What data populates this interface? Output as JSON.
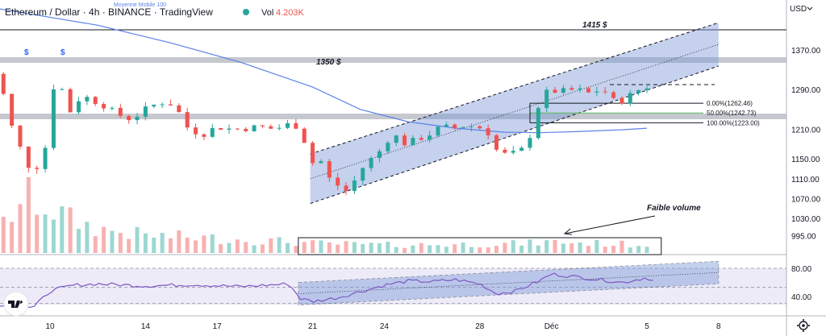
{
  "chart_data": {
    "type": "candlestick",
    "header": {
      "title": "Ethereum / Dollar · 4h · BINANCE · TradingView",
      "vol_label": "Vol",
      "vol_value": "4.203K",
      "ma_label": "Moyenne Mobile 100",
      "currency": "USD"
    },
    "y_ticks": [
      1370,
      1290,
      1210,
      1150,
      1110,
      1070,
      1030,
      995
    ],
    "y_tick_labels": [
      "1370.00",
      "1290.00",
      "1210.00",
      "1150.00",
      "1110.00",
      "1070.00",
      "1030.00",
      "995.00"
    ],
    "rsi_ticks": [
      80,
      40
    ],
    "rsi_tick_labels": [
      "80.00",
      "40.00"
    ],
    "x_tick_labels": [
      "10",
      "14",
      "17",
      "21",
      "24",
      "28",
      "Déc",
      "5",
      "8"
    ],
    "x_tick_days": [
      10,
      14,
      17,
      21,
      24,
      28,
      31,
      35,
      38
    ],
    "levels": [
      {
        "price": 1415,
        "label": "1415 $"
      },
      {
        "price": 1350,
        "label": "1350 $"
      }
    ],
    "fib": [
      {
        "label": "0.00%(1262.46)",
        "price": 1262.46
      },
      {
        "label": "50.00%(1242.73)",
        "price": 1242.73
      },
      {
        "label": "100.00%(1223.00)",
        "price": 1223.0
      }
    ],
    "annotation": "Faible volume",
    "dividend_marker": "$",
    "channel": {
      "lower_start": {
        "day": 20.9,
        "price": 1060
      },
      "lower_end": {
        "day": 31.5,
        "price": 1232
      },
      "upper_start": {
        "day": 20.9,
        "price": 1160
      },
      "upper_end": {
        "day": 38.0,
        "price": 1425
      }
    },
    "ma100": {
      "day": [
        7.0,
        12.0,
        15.0,
        18.0,
        21.0,
        23.0,
        25.0,
        27.0,
        29.0,
        30.5,
        32.0,
        34.0,
        35.0
      ],
      "price": [
        1460.0,
        1420.0,
        1385.0,
        1345.0,
        1295.0,
        1250.0,
        1225.0,
        1212.0,
        1204.0,
        1203.0,
        1205.0,
        1209.0,
        1212.0
      ]
    },
    "price_path": {
      "day": [
        7.0,
        7.4,
        7.8,
        8.2,
        8.6,
        9.0,
        9.3,
        9.6,
        9.9,
        10.2,
        10.5,
        10.9,
        11.3,
        11.7,
        12.2,
        12.8,
        13.4,
        14.0,
        14.6,
        15.2,
        15.8,
        16.4,
        17.0,
        17.6,
        18.2,
        18.8,
        19.4,
        20.0,
        20.5,
        20.9,
        21.3,
        21.7,
        22.1,
        22.5,
        22.9,
        23.3,
        23.7,
        24.1,
        24.5,
        24.9,
        25.4,
        25.9,
        26.4,
        26.9,
        27.4,
        27.9,
        28.3,
        28.7,
        29.1,
        29.5,
        29.9,
        30.2,
        30.5,
        30.9,
        31.3,
        31.7,
        32.1,
        32.5,
        32.9,
        33.3,
        33.7,
        34.1,
        34.5,
        34.9,
        35.3
      ],
      "price": [
        1440.0,
        1300.0,
        1330.0,
        1250.0,
        1180.0,
        1160.0,
        1090.0,
        1180.0,
        1170.0,
        1320.0,
        1290.0,
        1240.0,
        1280.0,
        1270.0,
        1260.0,
        1240.0,
        1230.0,
        1250.0,
        1265.0,
        1260.0,
        1210.0,
        1200.0,
        1215.0,
        1210.0,
        1212.0,
        1215.0,
        1210.0,
        1220.0,
        1215.0,
        1140.0,
        1150.0,
        1110.0,
        1095.0,
        1082.0,
        1120.0,
        1145.0,
        1158.0,
        1188.0,
        1195.0,
        1180.0,
        1190.0,
        1200.0,
        1215.0,
        1212.0,
        1218.0,
        1215.0,
        1208.0,
        1168.0,
        1158.0,
        1162.0,
        1172.0,
        1210.0,
        1265.0,
        1290.0,
        1285.0,
        1288.0,
        1290.0,
        1282.0,
        1288.0,
        1285.0,
        1262.0,
        1272.0,
        1285.0,
        1296.0,
        1295.0
      ]
    },
    "volume_path": {
      "day": [
        7.0,
        8.0,
        9.0,
        10.0,
        11.0,
        12.0,
        14.0,
        17.0,
        20.0,
        21.0,
        24.0,
        28.0,
        30.0,
        31.0,
        35.0
      ],
      "value": [
        25,
        35,
        70,
        55,
        40,
        30,
        22,
        18,
        14,
        12,
        10,
        11,
        12,
        14,
        10
      ]
    },
    "rsi_path": {
      "day": [
        7.0,
        7.8,
        8.6,
        9.3,
        10.0,
        11.0,
        12.0,
        14.0,
        16.0,
        18.0,
        20.0,
        20.5,
        21.0,
        22.0,
        23.0,
        24.0,
        25.0,
        26.0,
        27.0,
        28.0,
        28.7,
        29.5,
        30.5,
        31.0,
        32.0,
        33.0,
        34.0,
        35.0,
        35.3
      ],
      "value": [
        38.0,
        26.0,
        29.0,
        24.0,
        48.0,
        56.0,
        58.0,
        55.0,
        57.0,
        54.0,
        58.0,
        37.0,
        33.0,
        38.0,
        47.0,
        56.0,
        62.0,
        61.0,
        64.0,
        58.0,
        44.0,
        48.0,
        62.0,
        72.0,
        68.0,
        64.0,
        60.0,
        67.0,
        62.0
      ]
    },
    "volume_box": {
      "day_start": 20.4,
      "day_end": 35.6
    }
  }
}
